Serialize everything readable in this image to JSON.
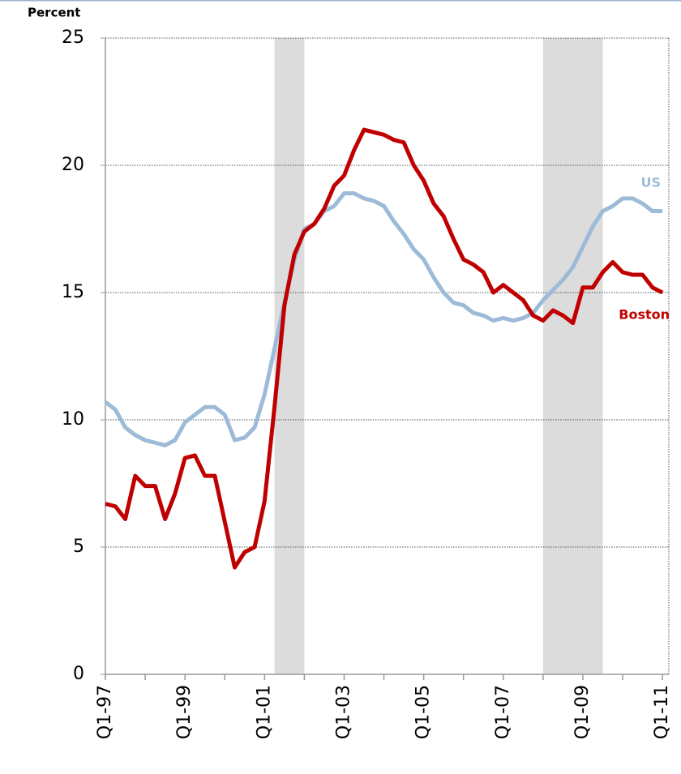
{
  "chart_data": {
    "type": "line",
    "ylabel": "Percent",
    "categories": [
      "Q1-97",
      null,
      null,
      null,
      null,
      null,
      null,
      null,
      "Q1-99",
      null,
      null,
      null,
      null,
      null,
      null,
      null,
      "Q1-01",
      null,
      null,
      null,
      null,
      null,
      null,
      null,
      "Q1-03",
      null,
      null,
      null,
      null,
      null,
      null,
      null,
      "Q1-05",
      null,
      null,
      null,
      null,
      null,
      null,
      null,
      "Q1-07",
      null,
      null,
      null,
      null,
      null,
      null,
      null,
      "Q1-09",
      null,
      null,
      null,
      null,
      null,
      null,
      null,
      "Q1-11"
    ],
    "series": [
      {
        "name": "US",
        "color": "#9dbbd8",
        "values": [
          10.7,
          10.4,
          9.7,
          9.4,
          9.2,
          9.1,
          9.0,
          9.2,
          9.9,
          10.2,
          10.5,
          10.5,
          10.2,
          9.2,
          9.3,
          9.7,
          11.0,
          12.8,
          14.6,
          16.3,
          17.5,
          17.7,
          18.2,
          18.4,
          18.9,
          18.9,
          18.7,
          18.6,
          18.4,
          17.8,
          17.3,
          16.7,
          16.3,
          15.6,
          15.0,
          14.6,
          14.5,
          14.2,
          14.1,
          13.9,
          14.0,
          13.9,
          14.0,
          14.2,
          14.7,
          15.1,
          15.5,
          16.0,
          16.8,
          17.6,
          18.2,
          18.4,
          18.7,
          18.7,
          18.5,
          18.2,
          18.2
        ]
      },
      {
        "name": "Boston",
        "color": "#c00000",
        "values": [
          6.7,
          6.6,
          6.1,
          7.8,
          7.4,
          7.4,
          6.1,
          7.1,
          8.5,
          8.6,
          7.8,
          7.8,
          6.0,
          4.2,
          4.8,
          5.0,
          6.8,
          10.5,
          14.5,
          16.5,
          17.4,
          17.7,
          18.3,
          19.2,
          19.6,
          20.6,
          21.4,
          21.3,
          21.2,
          21.0,
          20.9,
          20.0,
          19.4,
          18.5,
          18.0,
          17.1,
          16.3,
          16.1,
          15.8,
          15.0,
          15.3,
          15.0,
          14.7,
          14.1,
          13.9,
          14.3,
          14.1,
          13.8,
          15.2,
          15.2,
          15.8,
          16.2,
          15.8,
          15.7,
          15.7,
          15.2,
          15.0
        ]
      }
    ],
    "shaded_ranges": [
      [
        17,
        20
      ],
      [
        44,
        50
      ]
    ],
    "shade_color": "#dcdcdc",
    "ylim": [
      0,
      25
    ],
    "yticks": [
      0,
      5,
      10,
      15,
      20,
      25
    ],
    "grid": true
  }
}
